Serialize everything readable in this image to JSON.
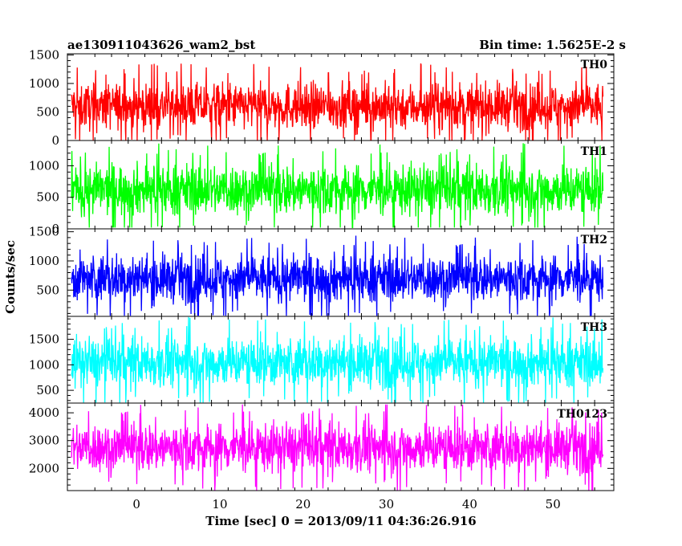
{
  "chart_data": {
    "type": "line",
    "title_left": "ae130911043626_wam2_bst",
    "title_right": "Bin time: 1.5625E-2 s",
    "xlabel": "Time [sec] 0 = 2013/09/11 04:36:26.916",
    "ylabel": "Counts/sec",
    "xlim": [
      -8.3,
      57.3
    ],
    "data_x_range": [
      -7.8,
      56.0
    ],
    "x_ticks": [
      0,
      10,
      20,
      30,
      40,
      50
    ],
    "bin_time": 0.015625,
    "panels": [
      {
        "name": "TH0",
        "color": "#ff0000",
        "ylim": [
          0,
          1520
        ],
        "y_ticks": [
          0,
          500,
          1000,
          1500
        ],
        "mean": 600,
        "typical_low": 150,
        "typical_high": 1150,
        "min": 0,
        "max": 1520
      },
      {
        "name": "TH1",
        "color": "#00ff00",
        "ylim": [
          0,
          1400
        ],
        "y_ticks": [
          0,
          500,
          1000
        ],
        "mean": 620,
        "typical_low": 150,
        "typical_high": 1150,
        "min": 20,
        "max": 1400
      },
      {
        "name": "TH2",
        "color": "#0000ff",
        "ylim": [
          50,
          1550
        ],
        "y_ticks": [
          500,
          1000,
          1500
        ],
        "mean": 700,
        "typical_low": 200,
        "typical_high": 1200,
        "min": 60,
        "max": 1500
      },
      {
        "name": "TH3",
        "color": "#00ffff",
        "ylim": [
          250,
          1950
        ],
        "y_ticks": [
          500,
          1000,
          1500
        ],
        "mean": 1050,
        "typical_low": 450,
        "typical_high": 1650,
        "min": 260,
        "max": 1950
      },
      {
        "name": "TH0123",
        "color": "#ff00ff",
        "ylim": [
          1200,
          4350
        ],
        "y_ticks": [
          2000,
          3000,
          4000
        ],
        "mean": 2750,
        "typical_low": 1650,
        "typical_high": 3850,
        "min": 1200,
        "max": 4300
      }
    ]
  }
}
